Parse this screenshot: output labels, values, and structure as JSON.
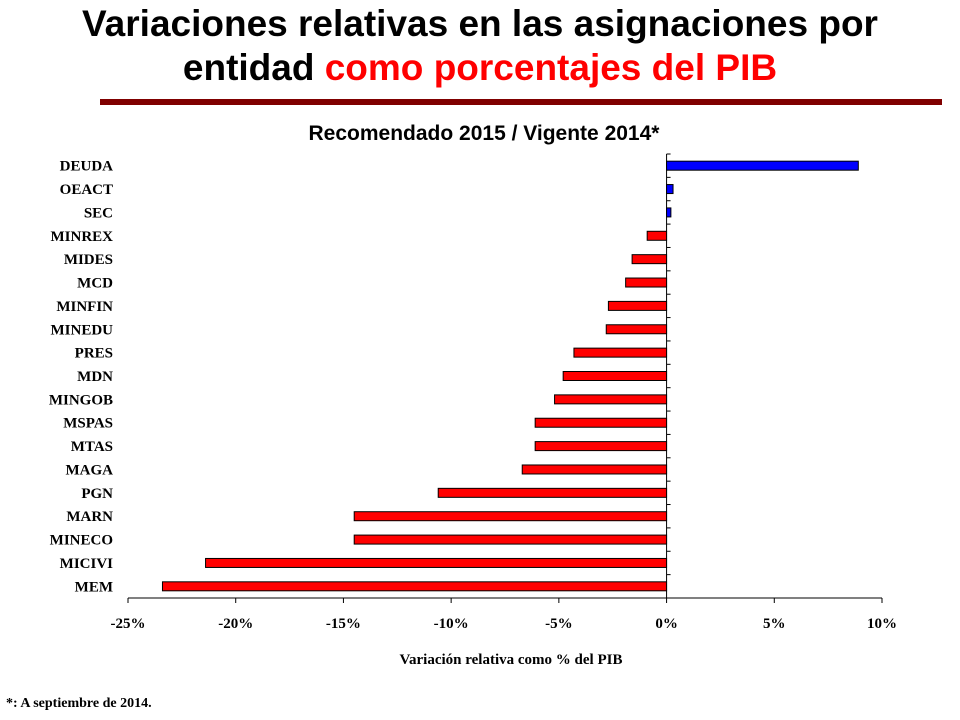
{
  "slide": {
    "title_line1": "Variaciones relativas en las asignaciones por",
    "title_line2_prefix": "entidad ",
    "title_line2_highlight": "como porcentajes del PIB",
    "footnote": "*: A septiembre de 2014."
  },
  "colors": {
    "title_highlight": "#ff0000",
    "rule": "#800000",
    "bar_positive": "#0000ff",
    "bar_negative": "#ff0000"
  },
  "chart_data": {
    "type": "bar",
    "orientation": "horizontal",
    "title": "Recomendado 2015 / Vigente 2014*",
    "xlabel": "Variación relativa como % del PIB",
    "ylabel": "",
    "xlim": [
      -25,
      10
    ],
    "xticks": [
      -25,
      -20,
      -15,
      -10,
      -5,
      0,
      5,
      10
    ],
    "xtick_labels": [
      "-25%",
      "-20%",
      "-15%",
      "-10%",
      "-5%",
      "0%",
      "5%",
      "10%"
    ],
    "grid": false,
    "categories": [
      "DEUDA",
      "OEACT",
      "SEC",
      "MINREX",
      "MIDES",
      "MCD",
      "MINFIN",
      "MINEDU",
      "PRES",
      "MDN",
      "MINGOB",
      "MSPAS",
      "MTAS",
      "MAGA",
      "PGN",
      "MARN",
      "MINECO",
      "MICIVI",
      "MEM"
    ],
    "values": [
      8.9,
      0.3,
      0.2,
      -0.9,
      -1.6,
      -1.9,
      -2.7,
      -2.8,
      -4.3,
      -4.8,
      -5.2,
      -6.1,
      -6.1,
      -6.7,
      -10.6,
      -14.5,
      -14.5,
      -21.4,
      -23.4
    ]
  }
}
